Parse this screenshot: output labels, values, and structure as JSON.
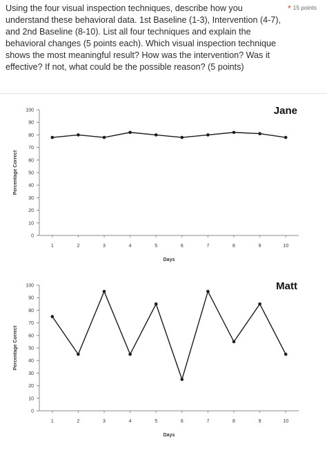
{
  "question": {
    "text": "Using the four visual inspection techniques, describe how you understand these behavioral data. 1st Baseline (1-3), Intervention (4-7), and 2nd Baseline (8-10). List all four techniques and explain the behavioral changes (5 points each). Which visual inspection technique shows the most meaningful result? How was the intervention? Was it effective? If not, what could be the possible reason? (5 points)",
    "points_label": "15 points",
    "required_marker": "*"
  },
  "colors": {
    "required": "#d9342b",
    "line": "#1a1a1a",
    "axis": "#888888"
  },
  "chart_data": [
    {
      "type": "line",
      "title": "Jane",
      "xlabel": "Days",
      "ylabel": "Percentage Correct",
      "x": [
        1,
        2,
        3,
        4,
        5,
        6,
        7,
        8,
        9,
        10
      ],
      "series": [
        {
          "values": [
            78,
            80,
            78,
            82,
            80,
            78,
            80,
            82,
            81,
            78
          ]
        }
      ],
      "xticks": [
        "1",
        "2",
        "3",
        "4",
        "5",
        "6",
        "7",
        "8",
        "9",
        "10"
      ],
      "yticks": [
        "0",
        "10",
        "20",
        "30",
        "40",
        "50",
        "60",
        "70",
        "80",
        "90",
        "100"
      ],
      "ylim": [
        0,
        100
      ],
      "grid": false
    },
    {
      "type": "line",
      "title": "Matt",
      "xlabel": "Days",
      "ylabel": "Percentage Correct",
      "x": [
        1,
        2,
        3,
        4,
        5,
        6,
        7,
        8,
        9,
        10
      ],
      "series": [
        {
          "values": [
            75,
            45,
            95,
            45,
            85,
            25,
            95,
            55,
            85,
            45
          ]
        }
      ],
      "xticks": [
        "1",
        "2",
        "3",
        "4",
        "5",
        "6",
        "7",
        "8",
        "9",
        "10"
      ],
      "yticks": [
        "0",
        "10",
        "20",
        "30",
        "40",
        "50",
        "60",
        "70",
        "80",
        "90",
        "100"
      ],
      "ylim": [
        0,
        100
      ],
      "grid": false
    }
  ]
}
